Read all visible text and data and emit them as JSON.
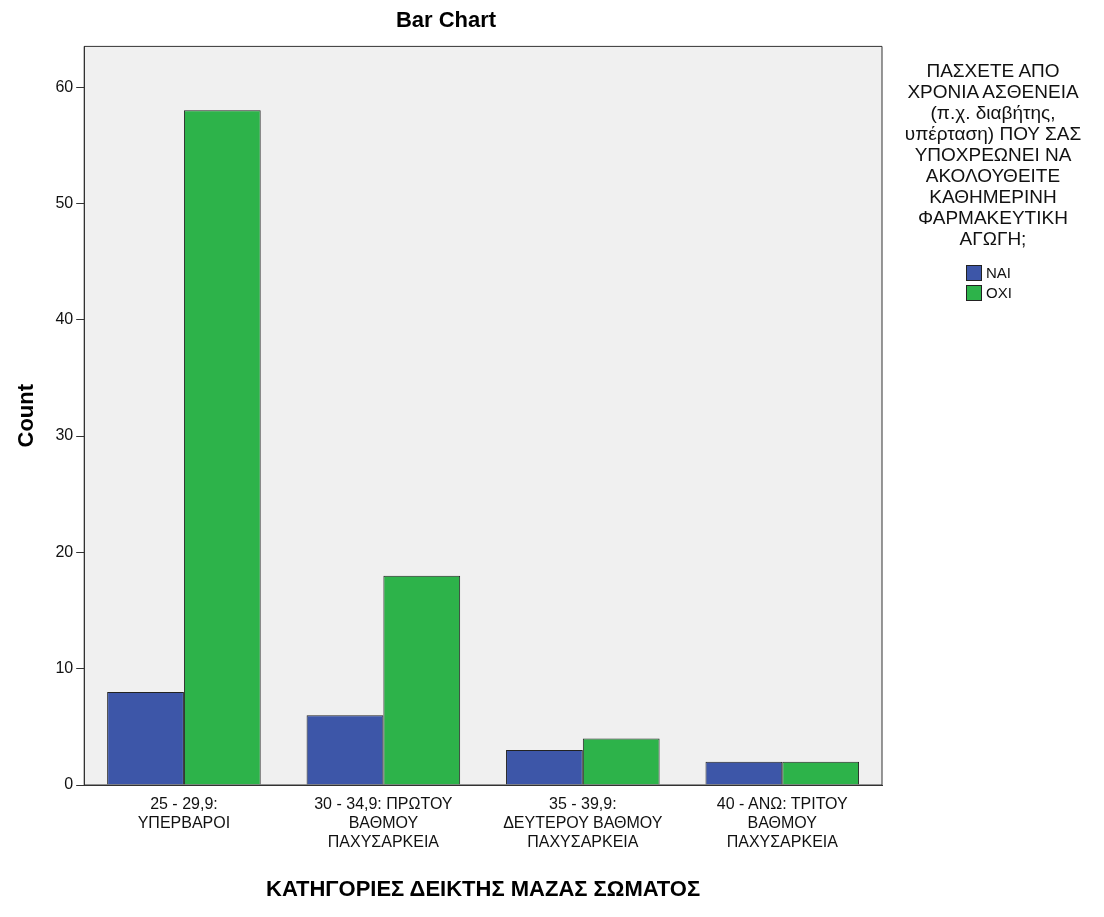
{
  "chart_data": {
    "type": "bar",
    "title": "Bar Chart",
    "xlabel": "ΚΑΤΗΓΟΡΙΕΣ ΔΕΙΚΤΗΣ ΜΑΖΑΣ ΣΩΜΑΤΟΣ",
    "ylabel": "Count",
    "legend_title": "ΠΑΣΧΕΤΕ ΑΠΟ ΧΡΟΝΙΑ ΑΣΘΕΝΕΙΑ (π.χ. διαβήτης, υπέρταση) ΠΟΥ ΣΑΣ ΥΠΟΧΡΕΩΝΕΙ ΝΑ ΑΚΟΛΟΥΘΕΙΤΕ ΚΑΘΗΜΕΡΙΝΗ ΦΑΡΜΑΚΕΥΤΙΚΗ ΑΓΩΓΗ;",
    "categories": [
      "25 - 29,9: ΥΠΕΡΒΑΡΟΙ",
      "30 - 34,9: ΠΡΩΤΟΥ ΒΑΘΜΟΥ ΠΑΧΥΣΑΡΚΕΙΑ",
      "35 - 39,9: ΔΕΥΤΕΡΟΥ ΒΑΘΜΟΥ ΠΑΧΥΣΑΡΚΕΙΑ",
      "40 - ΑΝΩ: ΤΡΙΤΟΥ ΒΑΘΜΟΥ ΠΑΧΥΣΑΡΚΕΙΑ"
    ],
    "series": [
      {
        "name": "ΝΑΙ",
        "color": "#3d56a8",
        "values": [
          8,
          6,
          3,
          2
        ]
      },
      {
        "name": "ΟΧΙ",
        "color": "#2db34a",
        "values": [
          58,
          18,
          4,
          2
        ]
      }
    ],
    "ylim": [
      0,
      63.5
    ],
    "yticks": [
      0,
      10,
      20,
      30,
      40,
      50,
      60
    ],
    "grid": false,
    "legend": "right"
  }
}
